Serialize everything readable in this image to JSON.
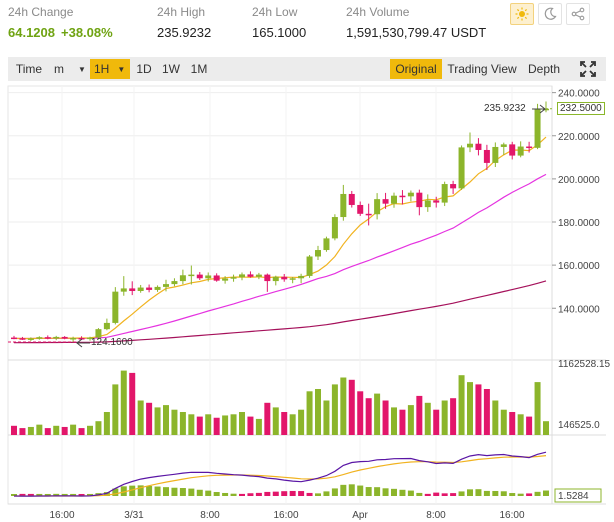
{
  "stats": {
    "change": {
      "label": "24h Change",
      "value": "64.1208",
      "percent": "+38.08%"
    },
    "high": {
      "label": "24h High",
      "value": "235.9232"
    },
    "low": {
      "label": "24h Low",
      "value": "165.1000"
    },
    "volume": {
      "label": "24h Volume",
      "value": "1,591,530,799.47 USDT"
    }
  },
  "theme": {
    "light_icon": "sun-icon",
    "dark_icon": "moon-icon",
    "share_icon": "share-icon"
  },
  "toolbar": {
    "time_label": "Time",
    "minute_label": "m",
    "hour_label": "1H",
    "day_label": "1D",
    "week_label": "1W",
    "month_label": "1M",
    "views": [
      "Original",
      "Trading View",
      "Depth"
    ],
    "active_view": "Original",
    "fullscreen_icon": "fullscreen-icon"
  },
  "colors": {
    "up": "#8cb52b",
    "down": "#e2166a",
    "ma7": "#f1b320",
    "ma25": "#e533e0",
    "ma99": "#a5115b",
    "highlight": "#f0b90b"
  },
  "chart_data": {
    "type": "candlestick",
    "price_ticks": [
      "240.0000",
      "220.0000",
      "200.0000",
      "180.0000",
      "160.0000",
      "140.0000"
    ],
    "price_ylim": [
      116,
      244
    ],
    "last_price": "232.5000",
    "high_marker": "235.9232",
    "low_marker": "124.1600",
    "volume_max_label": "1162528.15",
    "volume_last_label": "146525.0",
    "macd_last_label": "1.5284",
    "x_labels": [
      "16:00",
      "3/31",
      "8:00",
      "16:00",
      "Apr",
      "8:00",
      "16:00"
    ],
    "candles": [
      [
        126.4,
        127.2,
        125.6,
        126.1
      ],
      [
        126.1,
        126.7,
        125.3,
        125.6
      ],
      [
        125.6,
        126.5,
        124.8,
        126.0
      ],
      [
        126.0,
        127.0,
        125.4,
        126.6
      ],
      [
        126.6,
        127.4,
        125.6,
        126.0
      ],
      [
        126.0,
        127.2,
        125.2,
        126.7
      ],
      [
        126.7,
        127.1,
        125.6,
        126.0
      ],
      [
        126.0,
        126.8,
        124.2,
        126.2
      ],
      [
        126.2,
        127.0,
        125.3,
        125.9
      ],
      [
        125.9,
        126.8,
        125.0,
        126.4
      ],
      [
        126.4,
        130.8,
        125.5,
        130.3
      ],
      [
        130.3,
        135.2,
        129.8,
        133.2
      ],
      [
        133.2,
        149.8,
        132.5,
        147.7
      ],
      [
        147.7,
        154.9,
        145.8,
        149.2
      ],
      [
        149.2,
        152.5,
        146.1,
        148.0
      ],
      [
        148.0,
        150.8,
        147.2,
        149.6
      ],
      [
        149.6,
        151.0,
        147.4,
        148.5
      ],
      [
        148.5,
        150.6,
        147.6,
        149.9
      ],
      [
        149.9,
        153.2,
        147.8,
        151.2
      ],
      [
        151.2,
        153.9,
        150.2,
        152.6
      ],
      [
        152.6,
        157.9,
        151.1,
        155.3
      ],
      [
        155.3,
        159.8,
        151.0,
        155.6
      ],
      [
        155.6,
        156.8,
        153.1,
        153.9
      ],
      [
        153.9,
        156.6,
        152.4,
        155.2
      ],
      [
        155.2,
        156.2,
        152.3,
        152.8
      ],
      [
        152.8,
        154.9,
        151.4,
        153.8
      ],
      [
        153.8,
        155.6,
        152.3,
        154.4
      ],
      [
        154.4,
        156.6,
        153.0,
        155.7
      ],
      [
        155.7,
        157.1,
        154.2,
        154.6
      ],
      [
        154.6,
        156.4,
        153.5,
        155.6
      ],
      [
        155.6,
        156.1,
        147.6,
        152.6
      ],
      [
        152.6,
        155.1,
        150.6,
        154.6
      ],
      [
        154.6,
        155.9,
        152.3,
        153.4
      ],
      [
        153.4,
        154.5,
        151.6,
        153.9
      ],
      [
        153.9,
        156.0,
        151.6,
        155.0
      ],
      [
        155.0,
        164.7,
        154.1,
        164.0
      ],
      [
        164.0,
        168.9,
        162.4,
        167.0
      ],
      [
        167.0,
        173.2,
        166.2,
        172.4
      ],
      [
        172.4,
        183.6,
        171.5,
        182.3
      ],
      [
        182.3,
        197.2,
        180.6,
        193.0
      ],
      [
        193.0,
        194.4,
        186.7,
        187.9
      ],
      [
        187.9,
        189.5,
        182.8,
        183.8
      ],
      [
        183.8,
        188.5,
        178.4,
        183.6
      ],
      [
        183.6,
        193.4,
        181.2,
        190.6
      ],
      [
        190.6,
        193.5,
        186.1,
        188.5
      ],
      [
        188.5,
        193.6,
        186.6,
        192.2
      ],
      [
        192.2,
        194.8,
        188.1,
        191.9
      ],
      [
        191.9,
        194.6,
        189.6,
        193.6
      ],
      [
        193.6,
        195.0,
        183.1,
        186.9
      ],
      [
        186.9,
        192.8,
        184.7,
        190.0
      ],
      [
        190.0,
        191.7,
        186.7,
        189.0
      ],
      [
        189.0,
        198.7,
        187.4,
        197.6
      ],
      [
        197.6,
        199.1,
        193.0,
        195.6
      ],
      [
        195.6,
        215.5,
        194.9,
        214.6
      ],
      [
        214.6,
        221.5,
        212.4,
        216.3
      ],
      [
        216.3,
        218.9,
        210.9,
        213.4
      ],
      [
        213.4,
        215.8,
        204.1,
        207.4
      ],
      [
        207.4,
        216.9,
        205.5,
        214.8
      ],
      [
        214.8,
        216.8,
        211.1,
        216.0
      ],
      [
        216.0,
        217.2,
        209.0,
        210.8
      ],
      [
        210.8,
        217.4,
        210.0,
        215.0
      ],
      [
        215.0,
        217.2,
        212.2,
        214.4
      ],
      [
        214.4,
        234.8,
        213.8,
        232.2
      ],
      [
        232.2,
        235.9,
        230.9,
        232.5
      ]
    ],
    "volumes": [
      8,
      6,
      7,
      9,
      6,
      8,
      7,
      9,
      6,
      8,
      12,
      20,
      44,
      56,
      54,
      30,
      28,
      24,
      26,
      22,
      20,
      18,
      16,
      18,
      15,
      17,
      18,
      20,
      16,
      14,
      28,
      24,
      20,
      18,
      22,
      38,
      40,
      30,
      44,
      50,
      48,
      38,
      32,
      36,
      30,
      24,
      22,
      26,
      34,
      28,
      22,
      30,
      32,
      52,
      46,
      44,
      40,
      30,
      22,
      20,
      18,
      16,
      46,
      12
    ]
  }
}
